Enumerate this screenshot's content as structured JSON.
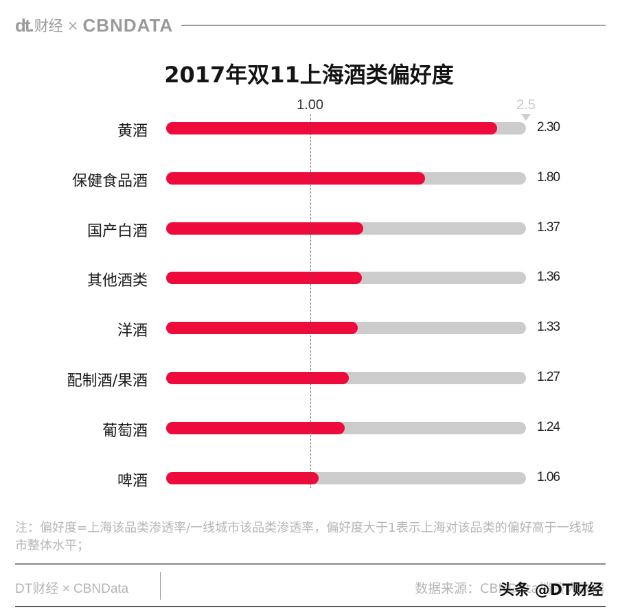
{
  "header": {
    "logo_dt": "dt.",
    "logo_cn": "财经",
    "logo_x": "×",
    "logo_cbn": "CBNDATA"
  },
  "chart_data": {
    "type": "bar",
    "orientation": "horizontal",
    "title": "2017年双11上海酒类偏好度",
    "categories": [
      "黄酒",
      "保健食品酒",
      "国产白酒",
      "其他酒类",
      "洋酒",
      "配制酒/果酒",
      "葡萄酒",
      "啤酒"
    ],
    "values": [
      2.3,
      1.8,
      1.37,
      1.36,
      1.33,
      1.27,
      1.24,
      1.06
    ],
    "value_labels": [
      "2.30",
      "1.80",
      "1.37",
      "1.36",
      "1.33",
      "1.27",
      "1.24",
      "1.06"
    ],
    "xlim": [
      0,
      2.5
    ],
    "reference_line": {
      "value": 1.0,
      "label": "1.00",
      "style": "dotted"
    },
    "max_marker": {
      "value": 2.5,
      "label": "2.5"
    },
    "xlabel": "",
    "ylabel": "",
    "grid": false,
    "legend": null,
    "colors": {
      "bar": "#ee0a3a",
      "track": "#cccccc"
    }
  },
  "title": "2017年双11上海酒类偏好度",
  "note": "注：偏好度=上海该品类渗透率/一线城市该品类渗透率，偏好度大于1表示上海对该品类的偏好高于一线城市整体水平；",
  "footer": {
    "left": "DT财经 × CBNData",
    "right": "数据来源：CBNData消费大数据",
    "watermark": "头条 @DT财经"
  }
}
